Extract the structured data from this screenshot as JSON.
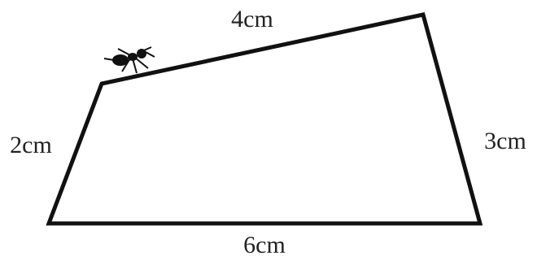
{
  "sides": [
    {
      "label": "4cm"
    },
    {
      "label": "3cm"
    },
    {
      "label": "6cm"
    },
    {
      "label": "2cm"
    }
  ]
}
